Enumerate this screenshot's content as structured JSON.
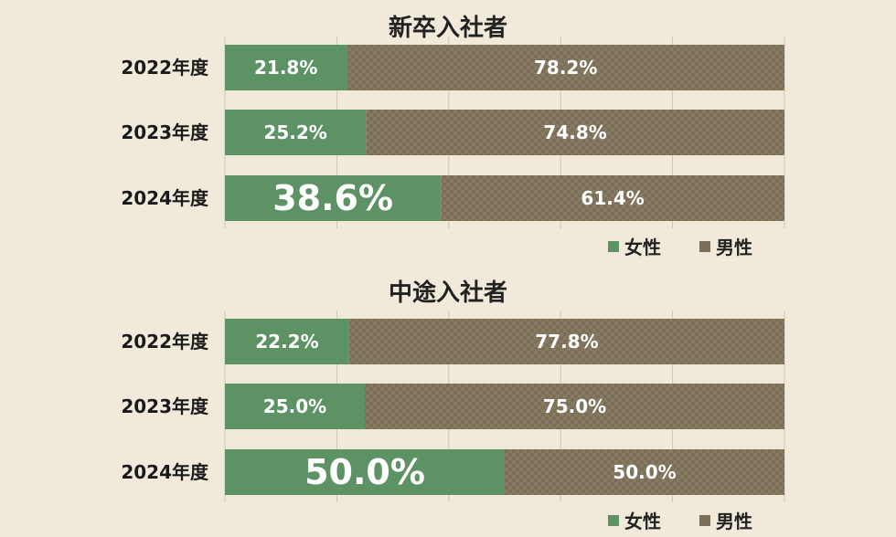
{
  "colors": {
    "female": "#5d9265",
    "male": "#7b6f58",
    "male_check": "#867a63",
    "grid": "#cfc5b0"
  },
  "chart_data": [
    {
      "type": "bar",
      "orientation": "horizontal",
      "stacked": true,
      "title": "新卒入社者",
      "categories": [
        "2022年度",
        "2023年度",
        "2024年度"
      ],
      "series": [
        {
          "name": "女性",
          "values": [
            21.8,
            25.2,
            38.6
          ],
          "labels": [
            "21.8%",
            "25.2%",
            "38.6%"
          ]
        },
        {
          "name": "男性",
          "values": [
            78.2,
            74.8,
            61.4
          ],
          "labels": [
            "78.2%",
            "74.8%",
            "61.4%"
          ]
        }
      ],
      "xlim": [
        0,
        100
      ],
      "highlight_index": 2,
      "legend_position": "bottom-right"
    },
    {
      "type": "bar",
      "orientation": "horizontal",
      "stacked": true,
      "title": "中途入社者",
      "categories": [
        "2022年度",
        "2023年度",
        "2024年度"
      ],
      "series": [
        {
          "name": "女性",
          "values": [
            22.2,
            25.0,
            50.0
          ],
          "labels": [
            "22.2%",
            "25.0%",
            "50.0%"
          ]
        },
        {
          "name": "男性",
          "values": [
            77.8,
            75.0,
            50.0
          ],
          "labels": [
            "77.8%",
            "75.0%",
            "50.0%"
          ]
        }
      ],
      "xlim": [
        0,
        100
      ],
      "highlight_index": 2,
      "legend_position": "bottom-right"
    }
  ]
}
